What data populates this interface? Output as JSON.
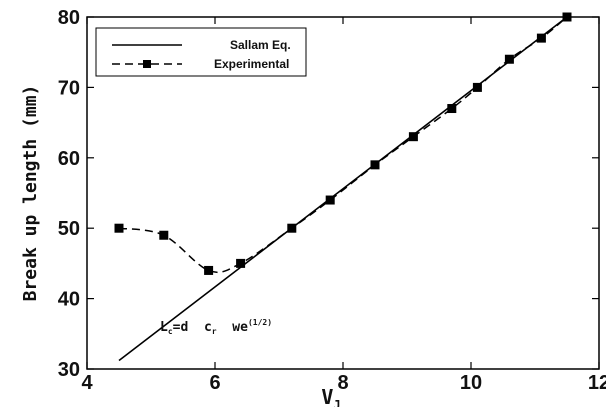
{
  "chart_data": {
    "type": "line",
    "title": "",
    "xlabel": "V",
    "xlabel_sub": "J",
    "ylabel": "Break up length (mm)",
    "xlim": [
      4,
      12
    ],
    "ylim": [
      30,
      80
    ],
    "xticks": [
      4,
      6,
      8,
      10,
      12
    ],
    "yticks": [
      30,
      40,
      50,
      60,
      70,
      80
    ],
    "grid": false,
    "legend_position": "top-left",
    "series": [
      {
        "name": "Sallam Eq.",
        "style": "solid",
        "color": "#000000",
        "x": [
          4.5,
          11.5
        ],
        "y": [
          31.2,
          80
        ]
      },
      {
        "name": "Experimental",
        "style": "dashed",
        "marker": "square",
        "color": "#000000",
        "x": [
          4.5,
          5.2,
          5.9,
          6.4,
          7.2,
          7.8,
          8.5,
          9.1,
          9.7,
          10.1,
          10.6,
          11.1,
          11.5
        ],
        "y": [
          50,
          49,
          44,
          45,
          50,
          54,
          59,
          63,
          67,
          70,
          74,
          77,
          80
        ]
      }
    ],
    "annotation": {
      "parts": [
        "L",
        "c",
        "=d  c",
        "r",
        "  we",
        "(1/2)"
      ]
    }
  }
}
